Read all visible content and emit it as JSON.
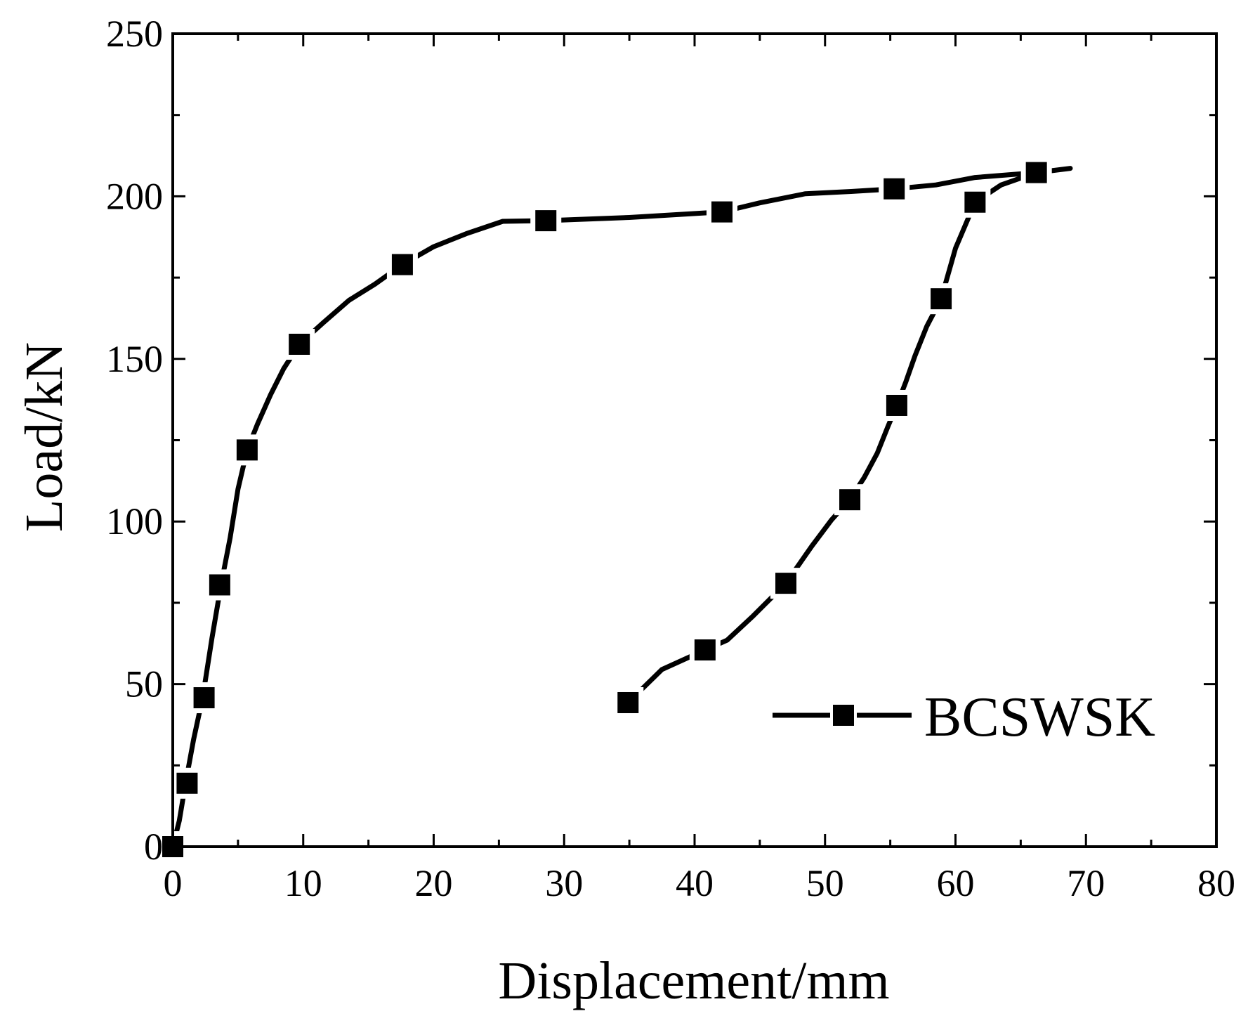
{
  "chart_data": {
    "type": "line",
    "title": "",
    "xlabel": "Displacement/mm",
    "ylabel": "Load/kN",
    "xlim": [
      0,
      80
    ],
    "ylim": [
      0,
      250
    ],
    "xticks": [
      0,
      10,
      20,
      30,
      40,
      50,
      60,
      70,
      80
    ],
    "yticks": [
      0,
      50,
      100,
      150,
      200,
      250
    ],
    "grid": false,
    "legend": {
      "position": "bottom-right"
    },
    "series": [
      {
        "name": "BCSWSK",
        "color": "#000000",
        "marker": "square",
        "line_points": [
          [
            0,
            0
          ],
          [
            0.5,
            8
          ],
          [
            1,
            20
          ],
          [
            1.6,
            33
          ],
          [
            2.3,
            46
          ],
          [
            3,
            64
          ],
          [
            3.7,
            80.5
          ],
          [
            4.4,
            95
          ],
          [
            5,
            110
          ],
          [
            5.7,
            122
          ],
          [
            6.5,
            130
          ],
          [
            7.5,
            139
          ],
          [
            8.5,
            147
          ],
          [
            9.7,
            154.5
          ],
          [
            11.5,
            161
          ],
          [
            13.5,
            168
          ],
          [
            15.5,
            173
          ],
          [
            17.6,
            179
          ],
          [
            20,
            184.5
          ],
          [
            22.5,
            188.5
          ],
          [
            25.3,
            192.3
          ],
          [
            28.5,
            192.5
          ],
          [
            35,
            193.5
          ],
          [
            42.1,
            195.2
          ],
          [
            45,
            198
          ],
          [
            48.5,
            200.8
          ],
          [
            52,
            201.5
          ],
          [
            55.3,
            202.3
          ],
          [
            58.5,
            203.5
          ],
          [
            61.5,
            205.8
          ],
          [
            66.2,
            207.3
          ],
          [
            68.8,
            208.6
          ]
        ],
        "unload_points": [
          [
            66.2,
            207.3
          ],
          [
            63.5,
            203.5
          ],
          [
            61.5,
            198.2
          ],
          [
            60,
            184
          ],
          [
            58.9,
            168.5
          ],
          [
            57.8,
            160
          ],
          [
            56.9,
            151
          ],
          [
            56.2,
            143
          ],
          [
            55.5,
            135.7
          ],
          [
            54.8,
            129
          ],
          [
            54,
            121
          ],
          [
            53,
            113.5
          ],
          [
            51.9,
            106.7
          ],
          [
            50.5,
            100.5
          ],
          [
            49,
            92.5
          ],
          [
            47,
            81
          ],
          [
            44.5,
            71
          ],
          [
            42.5,
            63.5
          ],
          [
            40.8,
            60.5
          ],
          [
            37.5,
            54.5
          ],
          [
            34.9,
            44.3
          ]
        ],
        "markers": [
          [
            0,
            0
          ],
          [
            1.1,
            19.5
          ],
          [
            2.4,
            45.8
          ],
          [
            3.6,
            80.5
          ],
          [
            5.7,
            122
          ],
          [
            9.7,
            154.5
          ],
          [
            17.6,
            179
          ],
          [
            28.6,
            192.5
          ],
          [
            42.1,
            195.2
          ],
          [
            55.3,
            202.3
          ],
          [
            66.2,
            207.3
          ],
          [
            61.5,
            198.2
          ],
          [
            58.9,
            168.5
          ],
          [
            55.5,
            135.7
          ],
          [
            51.9,
            106.7
          ],
          [
            47,
            81
          ],
          [
            40.8,
            60.5
          ],
          [
            34.9,
            44.3
          ]
        ]
      }
    ]
  }
}
